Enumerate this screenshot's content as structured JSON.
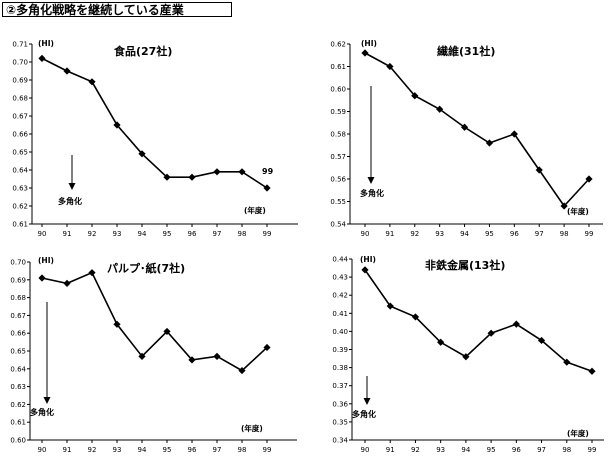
{
  "page_title": "②多角化戦略を継続している産業",
  "chart_data": [
    {
      "type": "line",
      "title": "食品(27社)",
      "ylabel": "(HI)",
      "xlabel": "(年度)",
      "categories": [
        "90",
        "91",
        "92",
        "93",
        "94",
        "95",
        "96",
        "97",
        "98",
        "99"
      ],
      "values": [
        0.702,
        0.695,
        0.689,
        0.665,
        0.649,
        0.636,
        0.636,
        0.639,
        0.639,
        0.63
      ],
      "ylim": [
        0.61,
        0.71
      ],
      "ystep": 0.01,
      "yticks": [
        "0.61",
        "0.62",
        "0.63",
        "0.64",
        "0.65",
        "0.66",
        "0.67",
        "0.68",
        "0.69",
        "0.70",
        "0.71"
      ],
      "diversification_label": "多角化",
      "arrow_at_x": "91",
      "data_label": "99"
    },
    {
      "type": "line",
      "title": "繊維(31社)",
      "ylabel": "(HI)",
      "xlabel": "(年度)",
      "categories": [
        "90",
        "91",
        "92",
        "93",
        "94",
        "95",
        "96",
        "97",
        "98",
        "99"
      ],
      "values": [
        0.616,
        0.61,
        0.597,
        0.591,
        0.583,
        0.576,
        0.58,
        0.564,
        0.548,
        0.56
      ],
      "ylim": [
        0.54,
        0.62
      ],
      "ystep": 0.01,
      "yticks": [
        "0.54",
        "0.55",
        "0.56",
        "0.57",
        "0.58",
        "0.59",
        "0.60",
        "0.61",
        "0.62"
      ],
      "diversification_label": "多角化",
      "arrow_at_x": "90"
    },
    {
      "type": "line",
      "title": "パルプ･紙(7社)",
      "ylabel": "(HI)",
      "xlabel": "(年度)",
      "categories": [
        "90",
        "91",
        "92",
        "93",
        "94",
        "95",
        "96",
        "97",
        "98",
        "99"
      ],
      "values": [
        0.691,
        0.688,
        0.694,
        0.665,
        0.647,
        0.661,
        0.645,
        0.647,
        0.639,
        0.652
      ],
      "ylim": [
        0.6,
        0.7
      ],
      "ystep": 0.01,
      "yticks": [
        "0.60",
        "0.61",
        "0.62",
        "0.63",
        "0.64",
        "0.65",
        "0.66",
        "0.67",
        "0.68",
        "0.69",
        "0.70"
      ],
      "diversification_label": "多角化",
      "arrow_at_x": "90"
    },
    {
      "type": "line",
      "title": "非鉄金属(13社)",
      "ylabel": "(HI)",
      "xlabel": "(年度)",
      "categories": [
        "90",
        "91",
        "92",
        "93",
        "94",
        "95",
        "96",
        "97",
        "98",
        "99"
      ],
      "values": [
        0.434,
        0.414,
        0.408,
        0.394,
        0.386,
        0.399,
        0.404,
        0.395,
        0.383,
        0.378
      ],
      "ylim": [
        0.34,
        0.44
      ],
      "ystep": 0.01,
      "yticks": [
        "0.34",
        "0.35",
        "0.36",
        "0.37",
        "0.38",
        "0.39",
        "0.40",
        "0.41",
        "0.42",
        "0.43",
        "0.44"
      ],
      "diversification_label": "多角化",
      "arrow_at_x": "90"
    }
  ]
}
